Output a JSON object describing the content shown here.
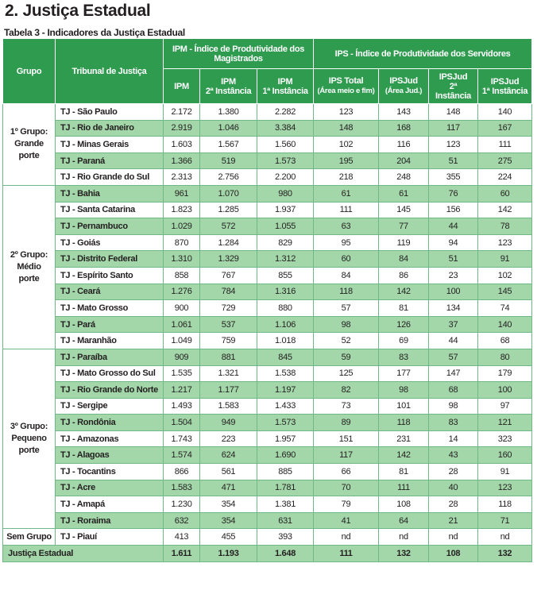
{
  "title": "2.  Justiça Estadual",
  "caption": "Tabela 3 - Indicadores da Justiça Estadual",
  "table": {
    "header": {
      "grupo": "Grupo",
      "tribunal": "Tribunal de Justiça",
      "ipm_group": "IPM - Índice de Produtividade dos Magistrados",
      "ips_group": "IPS - Índice de Produtividade dos Servidores",
      "columns": [
        [
          "IPM"
        ],
        [
          "IPM",
          "2ª Instância"
        ],
        [
          "IPM",
          "1ª Instância"
        ],
        [
          "IPS Total",
          "(Área meio e fim)"
        ],
        [
          "IPSJud",
          "(Área Jud.)"
        ],
        [
          "IPSJud",
          "2ª Instância"
        ],
        [
          "IPSJud",
          "1ª Instância"
        ]
      ]
    },
    "groups": [
      {
        "label": [
          "1º Grupo:",
          "Grande",
          "porte"
        ],
        "rows": [
          [
            "TJ - São Paulo",
            "2.172",
            "1.380",
            "2.282",
            "123",
            "143",
            "148",
            "140"
          ],
          [
            "TJ - Rio de Janeiro",
            "2.919",
            "1.046",
            "3.384",
            "148",
            "168",
            "117",
            "167"
          ],
          [
            "TJ - Minas Gerais",
            "1.603",
            "1.567",
            "1.560",
            "102",
            "116",
            "123",
            "111"
          ],
          [
            "TJ - Paraná",
            "1.366",
            "519",
            "1.573",
            "195",
            "204",
            "51",
            "275"
          ],
          [
            "TJ - Rio Grande do Sul",
            "2.313",
            "2.756",
            "2.200",
            "218",
            "248",
            "355",
            "224"
          ]
        ]
      },
      {
        "label": [
          "2º Grupo:",
          "Médio",
          "porte"
        ],
        "rows": [
          [
            "TJ - Bahia",
            "961",
            "1.070",
            "980",
            "61",
            "61",
            "76",
            "60"
          ],
          [
            "TJ - Santa Catarina",
            "1.823",
            "1.285",
            "1.937",
            "111",
            "145",
            "156",
            "142"
          ],
          [
            "TJ - Pernambuco",
            "1.029",
            "572",
            "1.055",
            "63",
            "77",
            "44",
            "78"
          ],
          [
            "TJ - Goiás",
            "870",
            "1.284",
            "829",
            "95",
            "119",
            "94",
            "123"
          ],
          [
            "TJ - Distrito Federal",
            "1.310",
            "1.329",
            "1.312",
            "60",
            "84",
            "51",
            "91"
          ],
          [
            "TJ - Espírito Santo",
            "858",
            "767",
            "855",
            "84",
            "86",
            "23",
            "102"
          ],
          [
            "TJ - Ceará",
            "1.276",
            "784",
            "1.316",
            "118",
            "142",
            "100",
            "145"
          ],
          [
            "TJ - Mato Grosso",
            "900",
            "729",
            "880",
            "57",
            "81",
            "134",
            "74"
          ],
          [
            "TJ - Pará",
            "1.061",
            "537",
            "1.106",
            "98",
            "126",
            "37",
            "140"
          ],
          [
            "TJ - Maranhão",
            "1.049",
            "759",
            "1.018",
            "52",
            "69",
            "44",
            "68"
          ]
        ]
      },
      {
        "label": [
          "3º Grupo:",
          "Pequeno",
          "porte"
        ],
        "rows": [
          [
            "TJ - Paraíba",
            "909",
            "881",
            "845",
            "59",
            "83",
            "57",
            "80"
          ],
          [
            "TJ - Mato Grosso do Sul",
            "1.535",
            "1.321",
            "1.538",
            "125",
            "177",
            "147",
            "179"
          ],
          [
            "TJ - Rio Grande do Norte",
            "1.217",
            "1.177",
            "1.197",
            "82",
            "98",
            "68",
            "100"
          ],
          [
            "TJ - Sergipe",
            "1.493",
            "1.583",
            "1.433",
            "73",
            "101",
            "98",
            "97"
          ],
          [
            "TJ - Rondônia",
            "1.504",
            "949",
            "1.573",
            "89",
            "118",
            "83",
            "121"
          ],
          [
            "TJ - Amazonas",
            "1.743",
            "223",
            "1.957",
            "151",
            "231",
            "14",
            "323"
          ],
          [
            "TJ - Alagoas",
            "1.574",
            "624",
            "1.690",
            "117",
            "142",
            "43",
            "160"
          ],
          [
            "TJ - Tocantins",
            "866",
            "561",
            "885",
            "66",
            "81",
            "28",
            "91"
          ],
          [
            "TJ - Acre",
            "1.583",
            "471",
            "1.781",
            "70",
            "111",
            "40",
            "123"
          ],
          [
            "TJ - Amapá",
            "1.230",
            "354",
            "1.381",
            "79",
            "108",
            "28",
            "118"
          ],
          [
            "TJ - Roraima",
            "632",
            "354",
            "631",
            "41",
            "64",
            "21",
            "71"
          ]
        ]
      },
      {
        "label": [
          "Sem Grupo"
        ],
        "rows": [
          [
            "TJ - Piauí",
            "413",
            "455",
            "393",
            "nd",
            "nd",
            "nd",
            "nd"
          ]
        ]
      }
    ],
    "total": [
      "Justiça Estadual",
      "1.611",
      "1.193",
      "1.648",
      "111",
      "132",
      "108",
      "132"
    ]
  }
}
